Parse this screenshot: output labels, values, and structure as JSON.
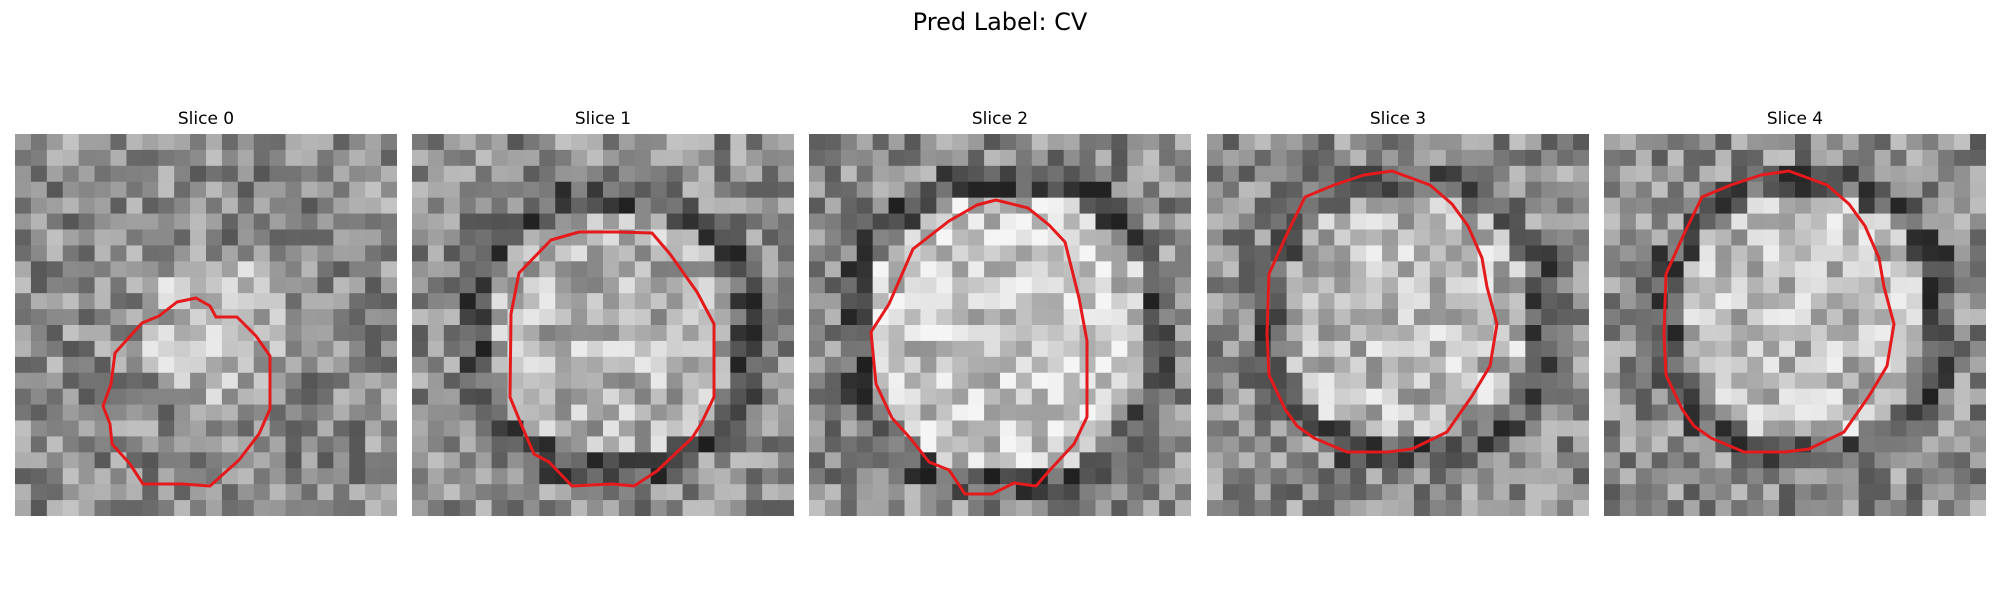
{
  "figure": {
    "title": "Pred Label: CV"
  },
  "panels": [
    {
      "title": "Slice 0"
    },
    {
      "title": "Slice 1"
    },
    {
      "title": "Slice 2"
    },
    {
      "title": "Slice 3"
    },
    {
      "title": "Slice 4"
    }
  ],
  "colors": {
    "contour": "#e41a1c",
    "background": "#ffffff"
  }
}
